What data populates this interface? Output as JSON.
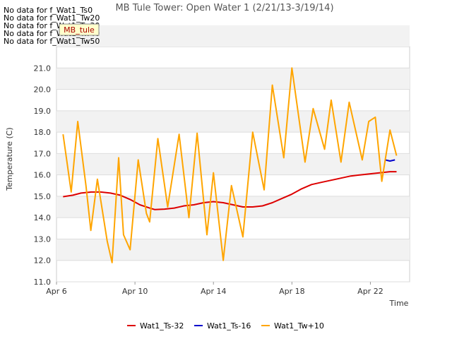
{
  "chart_data": {
    "type": "line",
    "title": "MB Tule Tower: Open Water 1 (2/21/13-3/19/14)",
    "xlabel": "Time",
    "ylabel": "Temperature (C)",
    "ylim": [
      11.0,
      22.0
    ],
    "yticks": [
      "11.0",
      "12.0",
      "13.0",
      "14.0",
      "15.0",
      "16.0",
      "17.0",
      "18.0",
      "19.0",
      "20.0",
      "21.0"
    ],
    "xlim": [
      "2013-04-06",
      "2013-04-24"
    ],
    "xticks": [
      {
        "date": "2013-04-06",
        "label": "Apr 6"
      },
      {
        "date": "2013-04-10",
        "label": "Apr 10"
      },
      {
        "date": "2013-04-14",
        "label": "Apr 14"
      },
      {
        "date": "2013-04-18",
        "label": "Apr 18"
      },
      {
        "date": "2013-04-22",
        "label": "Apr 22"
      }
    ],
    "background_bands": true,
    "no_data_messages": [
      "No data for f_Wat1_Ts0",
      "No data for f_Wat1_Tw20",
      "No data for f_Wat1_Tw30",
      "No data for f_Wat1_Tw40",
      "No data for f_Wat1_Tw50"
    ],
    "tag_label": "MB_tule",
    "legend": {
      "position": "bottom"
    },
    "series": [
      {
        "name": "Wat1_Ts-32",
        "color": "#dd0000",
        "points": [
          [
            "2013-04-06T08:00",
            14.98
          ],
          [
            "2013-04-06T20:00",
            15.05
          ],
          [
            "2013-04-07T06:00",
            15.15
          ],
          [
            "2013-04-07T18:00",
            15.2
          ],
          [
            "2013-04-08T06:00",
            15.2
          ],
          [
            "2013-04-08T18:00",
            15.15
          ],
          [
            "2013-04-09T06:00",
            15.05
          ],
          [
            "2013-04-09T18:00",
            14.85
          ],
          [
            "2013-04-10T06:00",
            14.6
          ],
          [
            "2013-04-10T18:00",
            14.45
          ],
          [
            "2013-04-11T00:00",
            14.38
          ],
          [
            "2013-04-11T12:00",
            14.4
          ],
          [
            "2013-04-12T00:00",
            14.45
          ],
          [
            "2013-04-12T12:00",
            14.55
          ],
          [
            "2013-04-13T00:00",
            14.6
          ],
          [
            "2013-04-13T12:00",
            14.7
          ],
          [
            "2013-04-14T00:00",
            14.75
          ],
          [
            "2013-04-14T12:00",
            14.7
          ],
          [
            "2013-04-15T00:00",
            14.6
          ],
          [
            "2013-04-15T12:00",
            14.5
          ],
          [
            "2013-04-16T00:00",
            14.5
          ],
          [
            "2013-04-16T12:00",
            14.55
          ],
          [
            "2013-04-17T00:00",
            14.7
          ],
          [
            "2013-04-17T12:00",
            14.9
          ],
          [
            "2013-04-18T00:00",
            15.1
          ],
          [
            "2013-04-18T12:00",
            15.35
          ],
          [
            "2013-04-19T00:00",
            15.55
          ],
          [
            "2013-04-19T12:00",
            15.65
          ],
          [
            "2013-04-20T00:00",
            15.75
          ],
          [
            "2013-04-20T12:00",
            15.85
          ],
          [
            "2013-04-21T00:00",
            15.95
          ],
          [
            "2013-04-21T12:00",
            16.0
          ],
          [
            "2013-04-22T00:00",
            16.05
          ],
          [
            "2013-04-22T12:00",
            16.1
          ],
          [
            "2013-04-23T00:00",
            16.15
          ],
          [
            "2013-04-23T08:00",
            16.15
          ]
        ]
      },
      {
        "name": "Wat1_Ts-16",
        "color": "#0000cc",
        "points": [
          [
            "2013-04-22T18:00",
            16.7
          ],
          [
            "2013-04-23T00:00",
            16.65
          ],
          [
            "2013-04-23T06:00",
            16.7
          ]
        ]
      },
      {
        "name": "Wat1_Tw+10",
        "color": "#ffa500",
        "points": [
          [
            "2013-04-06T08:00",
            17.9
          ],
          [
            "2013-04-06T18:00",
            15.2
          ],
          [
            "2013-04-07T02:00",
            18.5
          ],
          [
            "2013-04-07T12:00",
            15.5
          ],
          [
            "2013-04-07T18:00",
            13.4
          ],
          [
            "2013-04-08T02:00",
            15.8
          ],
          [
            "2013-04-08T14:00",
            12.9
          ],
          [
            "2013-04-08T20:00",
            11.9
          ],
          [
            "2013-04-09T04:00",
            16.8
          ],
          [
            "2013-04-09T10:00",
            13.2
          ],
          [
            "2013-04-09T18:00",
            12.5
          ],
          [
            "2013-04-10T04:00",
            16.7
          ],
          [
            "2013-04-10T14:00",
            14.2
          ],
          [
            "2013-04-10T18:00",
            13.8
          ],
          [
            "2013-04-11T04:00",
            17.7
          ],
          [
            "2013-04-11T16:00",
            14.5
          ],
          [
            "2013-04-12T06:00",
            17.9
          ],
          [
            "2013-04-12T18:00",
            14.0
          ],
          [
            "2013-04-13T04:00",
            17.95
          ],
          [
            "2013-04-13T16:00",
            13.2
          ],
          [
            "2013-04-14T00:00",
            16.1
          ],
          [
            "2013-04-14T12:00",
            12.0
          ],
          [
            "2013-04-14T22:00",
            15.5
          ],
          [
            "2013-04-15T12:00",
            13.1
          ],
          [
            "2013-04-16T00:00",
            18.0
          ],
          [
            "2013-04-16T14:00",
            15.3
          ],
          [
            "2013-04-17T00:00",
            20.2
          ],
          [
            "2013-04-17T14:00",
            16.8
          ],
          [
            "2013-04-18T00:00",
            21.0
          ],
          [
            "2013-04-18T16:00",
            16.6
          ],
          [
            "2013-04-19T02:00",
            19.1
          ],
          [
            "2013-04-19T16:00",
            17.2
          ],
          [
            "2013-04-20T00:00",
            19.5
          ],
          [
            "2013-04-20T12:00",
            16.6
          ],
          [
            "2013-04-20T22:00",
            19.4
          ],
          [
            "2013-04-21T14:00",
            16.7
          ],
          [
            "2013-04-21T22:00",
            18.5
          ],
          [
            "2013-04-22T06:00",
            18.7
          ],
          [
            "2013-04-22T14:00",
            15.7
          ],
          [
            "2013-04-23T00:00",
            18.1
          ],
          [
            "2013-04-23T08:00",
            16.9
          ]
        ]
      }
    ]
  }
}
